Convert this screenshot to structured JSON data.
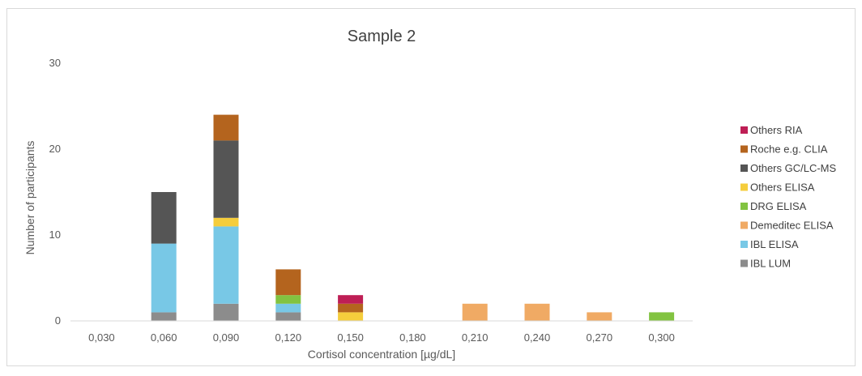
{
  "chart_data": {
    "type": "bar",
    "stacked": true,
    "title": "Sample 2",
    "xlabel": "Cortisol concentration [µg/dL]",
    "ylabel": "Number of participants",
    "ylim": [
      0,
      30
    ],
    "yticks": [
      "0",
      "10",
      "20",
      "30"
    ],
    "grid": false,
    "legend_position": "right",
    "categories": [
      "0,030",
      "0,060",
      "0,090",
      "0,120",
      "0,150",
      "0,180",
      "0,210",
      "0,240",
      "0,270",
      "0,300"
    ],
    "series": [
      {
        "name": "IBL LUM",
        "color": "#8c8c8c",
        "values": [
          0,
          1,
          2,
          1,
          0,
          0,
          0,
          0,
          0,
          0
        ]
      },
      {
        "name": "IBL ELISA",
        "color": "#78c8e6",
        "values": [
          0,
          8,
          9,
          1,
          0,
          0,
          0,
          0,
          0,
          0
        ]
      },
      {
        "name": "Demeditec ELISA",
        "color": "#f0aa64",
        "values": [
          0,
          0,
          0,
          0,
          0,
          0,
          2,
          2,
          1,
          0
        ]
      },
      {
        "name": "DRG ELISA",
        "color": "#82c341",
        "values": [
          0,
          0,
          0,
          1,
          0,
          0,
          0,
          0,
          0,
          1
        ]
      },
      {
        "name": "Others ELISA",
        "color": "#f5cd3c",
        "values": [
          0,
          0,
          1,
          0,
          1,
          0,
          0,
          0,
          0,
          0
        ]
      },
      {
        "name": "Others GC/LC-MS",
        "color": "#555555",
        "values": [
          0,
          6,
          9,
          0,
          0,
          0,
          0,
          0,
          0,
          0
        ]
      },
      {
        "name": "Roche e.g. CLIA",
        "color": "#b4641e",
        "values": [
          0,
          0,
          3,
          3,
          1,
          0,
          0,
          0,
          0,
          0
        ]
      },
      {
        "name": "Others RIA",
        "color": "#be1e55",
        "values": [
          0,
          0,
          0,
          0,
          1,
          0,
          0,
          0,
          0,
          0
        ]
      }
    ]
  }
}
